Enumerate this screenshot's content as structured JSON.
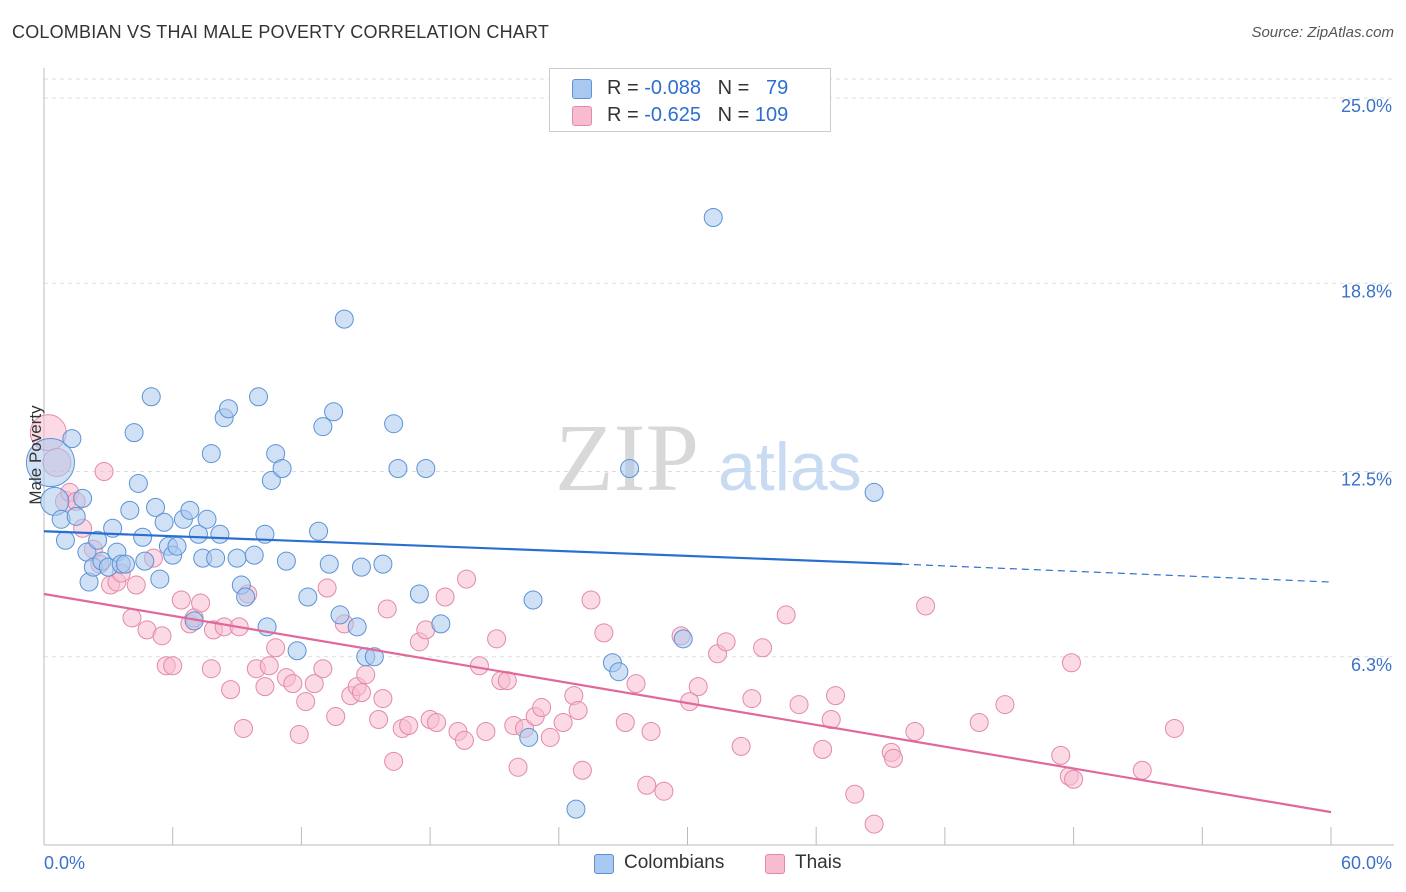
{
  "header": {
    "title": "COLOMBIAN VS THAI MALE POVERTY CORRELATION CHART",
    "source": "Source: ZipAtlas.com"
  },
  "legend": {
    "rows": [
      {
        "r_label": "R =",
        "r_value": "-0.088",
        "n_label": "N =",
        "n_value": "79"
      },
      {
        "r_label": "R =",
        "r_value": "-0.625",
        "n_label": "N =",
        "n_value": "109"
      }
    ]
  },
  "bottom_legend": {
    "colombians": "Colombians",
    "thais": "Thais"
  },
  "watermark": {
    "zip": "ZIP",
    "atlas": "atlas"
  },
  "colors": {
    "colombians_fill": "#a9c8ef",
    "colombians_stroke": "#5b93d6",
    "colombians_line": "#2a6fd0",
    "thais_fill": "#f7bcd0",
    "thais_stroke": "#e28aa8",
    "thais_line": "#e0689a",
    "tick_text": "#3a72c8"
  },
  "chart_data": {
    "type": "scatter",
    "title": "COLOMBIAN VS THAI MALE POVERTY CORRELATION CHART",
    "xlabel": "",
    "ylabel": "Male Poverty",
    "xlim": [
      0,
      60
    ],
    "ylim": [
      0,
      25
    ],
    "x_tick_labels": [
      "0.0%",
      "60.0%"
    ],
    "y_ticks": [
      6.3,
      12.5,
      18.8,
      25.0
    ],
    "y_tick_labels": [
      "6.3%",
      "12.5%",
      "18.8%",
      "25.0%"
    ],
    "grid": "horizontal dashed",
    "legend_placement": "top-center",
    "series": [
      {
        "name": "Colombians",
        "r": -0.088,
        "n": 79,
        "trend": {
          "x0": 0,
          "y0": 10.5,
          "x1": 40,
          "y1": 9.4,
          "dashed_to_x": 60,
          "dashed_to_y": 8.8
        },
        "points": [
          [
            0.3,
            12.8,
            24
          ],
          [
            0.5,
            11.5,
            14
          ],
          [
            0.8,
            10.9,
            9
          ],
          [
            1.0,
            10.2,
            9
          ],
          [
            1.3,
            13.6,
            9
          ],
          [
            1.5,
            11.0,
            9
          ],
          [
            1.8,
            11.6,
            9
          ],
          [
            2.0,
            9.8,
            9
          ],
          [
            2.1,
            8.8,
            9
          ],
          [
            2.3,
            9.3,
            9
          ],
          [
            2.5,
            10.2,
            9
          ],
          [
            2.7,
            9.5,
            9
          ],
          [
            3.0,
            9.3,
            9
          ],
          [
            3.2,
            10.6,
            9
          ],
          [
            3.4,
            9.8,
            9
          ],
          [
            3.6,
            9.4,
            9
          ],
          [
            3.8,
            9.4,
            9
          ],
          [
            4.0,
            11.2,
            9
          ],
          [
            4.2,
            13.8,
            9
          ],
          [
            4.4,
            12.1,
            9
          ],
          [
            4.6,
            10.3,
            9
          ],
          [
            4.7,
            9.5,
            9
          ],
          [
            5.0,
            15.0,
            9
          ],
          [
            5.2,
            11.3,
            9
          ],
          [
            5.4,
            8.9,
            9
          ],
          [
            5.6,
            10.8,
            9
          ],
          [
            5.8,
            10.0,
            9
          ],
          [
            6.0,
            9.7,
            9
          ],
          [
            6.2,
            10.0,
            9
          ],
          [
            6.5,
            10.9,
            9
          ],
          [
            6.8,
            11.2,
            9
          ],
          [
            7.0,
            7.5,
            9
          ],
          [
            7.2,
            10.4,
            9
          ],
          [
            7.4,
            9.6,
            9
          ],
          [
            7.6,
            10.9,
            9
          ],
          [
            7.8,
            13.1,
            9
          ],
          [
            8.0,
            9.6,
            9
          ],
          [
            8.2,
            10.4,
            9
          ],
          [
            8.4,
            14.3,
            9
          ],
          [
            8.6,
            14.6,
            9
          ],
          [
            9.0,
            9.6,
            9
          ],
          [
            9.2,
            8.7,
            9
          ],
          [
            9.4,
            8.3,
            9
          ],
          [
            9.8,
            9.7,
            9
          ],
          [
            10.0,
            15.0,
            9
          ],
          [
            10.3,
            10.4,
            9
          ],
          [
            10.4,
            7.3,
            9
          ],
          [
            10.6,
            12.2,
            9
          ],
          [
            10.8,
            13.1,
            9
          ],
          [
            11.1,
            12.6,
            9
          ],
          [
            11.3,
            9.5,
            9
          ],
          [
            11.8,
            6.5,
            9
          ],
          [
            12.3,
            8.3,
            9
          ],
          [
            12.8,
            10.5,
            9
          ],
          [
            13.0,
            14.0,
            9
          ],
          [
            13.3,
            9.4,
            9
          ],
          [
            13.5,
            14.5,
            9
          ],
          [
            13.8,
            7.7,
            9
          ],
          [
            14.0,
            17.6,
            9
          ],
          [
            14.6,
            7.3,
            9
          ],
          [
            14.8,
            9.3,
            9
          ],
          [
            15.0,
            6.3,
            9
          ],
          [
            15.4,
            6.3,
            9
          ],
          [
            15.8,
            9.4,
            9
          ],
          [
            16.3,
            14.1,
            9
          ],
          [
            16.5,
            12.6,
            9
          ],
          [
            17.5,
            8.4,
            9
          ],
          [
            17.8,
            12.6,
            9
          ],
          [
            18.5,
            7.4,
            9
          ],
          [
            22.8,
            8.2,
            9
          ],
          [
            22.6,
            3.6,
            9
          ],
          [
            24.8,
            1.2,
            9
          ],
          [
            26.5,
            6.1,
            9
          ],
          [
            26.8,
            5.8,
            9
          ],
          [
            27.3,
            12.6,
            9
          ],
          [
            29.8,
            6.9,
            9
          ],
          [
            31.2,
            21.0,
            9
          ],
          [
            38.7,
            11.8,
            9
          ]
        ]
      },
      {
        "name": "Thais",
        "r": -0.625,
        "n": 109,
        "trend": {
          "x0": 0,
          "y0": 8.4,
          "x1": 60,
          "y1": 1.1
        },
        "points": [
          [
            0.2,
            13.8,
            18
          ],
          [
            0.6,
            12.8,
            14
          ],
          [
            1.0,
            11.5,
            10
          ],
          [
            1.2,
            11.8,
            9
          ],
          [
            1.5,
            11.5,
            9
          ],
          [
            1.8,
            10.6,
            9
          ],
          [
            2.3,
            9.9,
            9
          ],
          [
            2.6,
            9.4,
            9
          ],
          [
            2.8,
            12.5,
            9
          ],
          [
            3.1,
            8.7,
            9
          ],
          [
            3.4,
            8.8,
            9
          ],
          [
            3.6,
            9.1,
            9
          ],
          [
            4.1,
            7.6,
            9
          ],
          [
            4.3,
            8.7,
            9
          ],
          [
            4.8,
            7.2,
            9
          ],
          [
            5.1,
            9.6,
            9
          ],
          [
            5.5,
            7.0,
            9
          ],
          [
            5.7,
            6.0,
            9
          ],
          [
            6.0,
            6.0,
            9
          ],
          [
            6.4,
            8.2,
            9
          ],
          [
            6.8,
            7.4,
            9
          ],
          [
            7.0,
            7.6,
            9
          ],
          [
            7.3,
            8.1,
            9
          ],
          [
            7.8,
            5.9,
            9
          ],
          [
            7.9,
            7.2,
            9
          ],
          [
            8.4,
            7.3,
            9
          ],
          [
            8.7,
            5.2,
            9
          ],
          [
            9.1,
            7.3,
            9
          ],
          [
            9.3,
            3.9,
            9
          ],
          [
            9.5,
            8.4,
            9
          ],
          [
            9.9,
            5.9,
            9
          ],
          [
            10.3,
            5.3,
            9
          ],
          [
            10.5,
            6.0,
            9
          ],
          [
            10.8,
            6.6,
            9
          ],
          [
            11.3,
            5.6,
            9
          ],
          [
            11.6,
            5.4,
            9
          ],
          [
            11.9,
            3.7,
            9
          ],
          [
            12.2,
            4.8,
            9
          ],
          [
            12.6,
            5.4,
            9
          ],
          [
            13.0,
            5.9,
            9
          ],
          [
            13.2,
            8.6,
            9
          ],
          [
            13.6,
            4.3,
            9
          ],
          [
            14.0,
            7.4,
            9
          ],
          [
            14.3,
            5.0,
            9
          ],
          [
            14.6,
            5.3,
            9
          ],
          [
            14.8,
            5.1,
            9
          ],
          [
            15.0,
            5.7,
            9
          ],
          [
            15.6,
            4.2,
            9
          ],
          [
            15.8,
            4.9,
            9
          ],
          [
            16.0,
            7.9,
            9
          ],
          [
            16.3,
            2.8,
            9
          ],
          [
            16.7,
            3.9,
            9
          ],
          [
            17.0,
            4.0,
            9
          ],
          [
            17.5,
            6.8,
            9
          ],
          [
            17.8,
            7.2,
            9
          ],
          [
            18.0,
            4.2,
            9
          ],
          [
            18.3,
            4.1,
            9
          ],
          [
            18.7,
            8.3,
            9
          ],
          [
            19.3,
            3.8,
            9
          ],
          [
            19.6,
            3.5,
            9
          ],
          [
            19.7,
            8.9,
            9
          ],
          [
            20.3,
            6.0,
            9
          ],
          [
            20.6,
            3.8,
            9
          ],
          [
            21.1,
            6.9,
            9
          ],
          [
            21.3,
            5.5,
            9
          ],
          [
            21.6,
            5.5,
            9
          ],
          [
            21.9,
            4.0,
            9
          ],
          [
            22.1,
            2.6,
            9
          ],
          [
            22.4,
            3.9,
            9
          ],
          [
            22.9,
            4.3,
            9
          ],
          [
            23.2,
            4.6,
            9
          ],
          [
            23.6,
            3.6,
            9
          ],
          [
            24.2,
            4.1,
            9
          ],
          [
            24.7,
            5.0,
            9
          ],
          [
            24.9,
            4.5,
            9
          ],
          [
            25.1,
            2.5,
            9
          ],
          [
            25.5,
            8.2,
            9
          ],
          [
            26.1,
            7.1,
            9
          ],
          [
            27.1,
            4.1,
            9
          ],
          [
            27.6,
            5.4,
            9
          ],
          [
            28.1,
            2.0,
            9
          ],
          [
            28.3,
            3.8,
            9
          ],
          [
            28.9,
            1.8,
            9
          ],
          [
            29.7,
            7.0,
            9
          ],
          [
            30.1,
            4.8,
            9
          ],
          [
            30.5,
            5.3,
            9
          ],
          [
            31.4,
            6.4,
            9
          ],
          [
            31.8,
            6.8,
            9
          ],
          [
            32.5,
            3.3,
            9
          ],
          [
            33.0,
            4.9,
            9
          ],
          [
            33.5,
            6.6,
            9
          ],
          [
            34.6,
            7.7,
            9
          ],
          [
            35.2,
            4.7,
            9
          ],
          [
            36.7,
            4.2,
            9
          ],
          [
            36.9,
            5.0,
            9
          ],
          [
            36.3,
            3.2,
            9
          ],
          [
            37.8,
            1.7,
            9
          ],
          [
            39.5,
            3.1,
            9
          ],
          [
            40.6,
            3.8,
            9
          ],
          [
            38.7,
            0.7,
            9
          ],
          [
            39.6,
            2.9,
            9
          ],
          [
            41.1,
            8.0,
            9
          ],
          [
            43.6,
            4.1,
            9
          ],
          [
            44.8,
            4.7,
            9
          ],
          [
            47.4,
            3.0,
            9
          ],
          [
            47.8,
            2.3,
            9
          ],
          [
            47.9,
            6.1,
            9
          ],
          [
            48.0,
            2.2,
            9
          ],
          [
            51.2,
            2.5,
            9
          ],
          [
            52.7,
            3.9,
            9
          ]
        ]
      }
    ]
  }
}
